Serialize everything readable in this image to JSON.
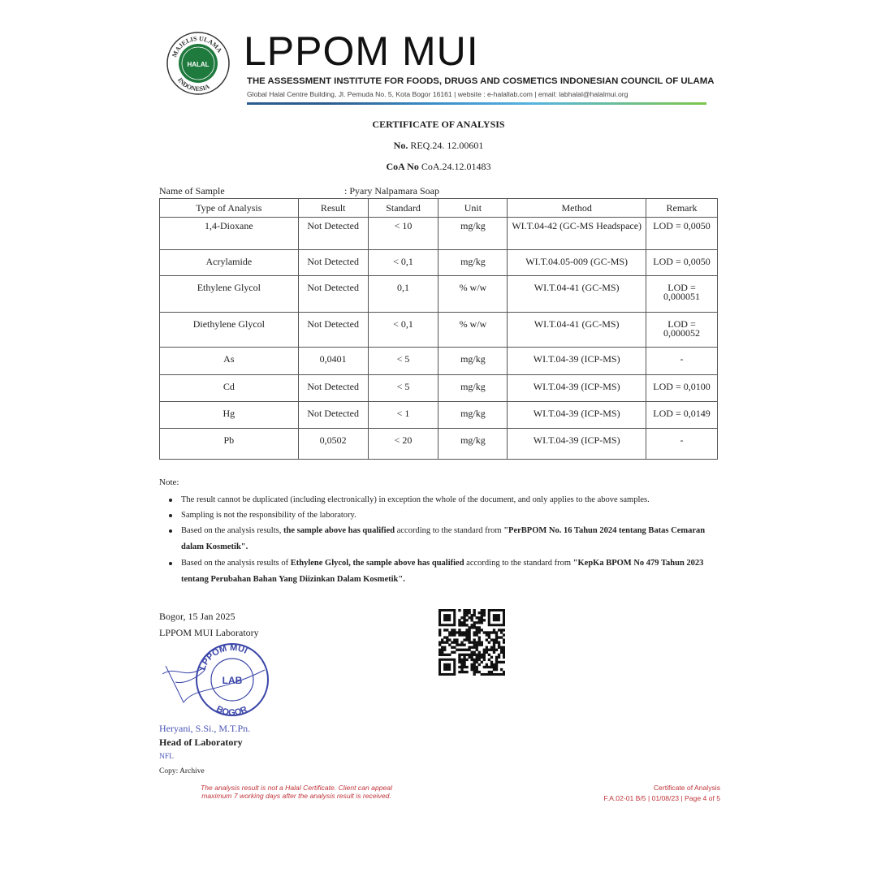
{
  "header": {
    "logo_text": "MAJELIS ULAMA INDONESIA HALAL",
    "brand": "LPPOM MUI",
    "institute": "THE ASSESSMENT INSTITUTE FOR FOODS, DRUGS AND COSMETICS INDONESIAN COUNCIL OF ULAMA",
    "address": "Global Halal Centre Building, Jl. Pemuda No. 5, Kota Bogor 16161 | website : e-halallab.com | email: labhalal@halalmui.org"
  },
  "title": "CERTIFICATE OF ANALYSIS",
  "req_label": "No.",
  "req_value": "REQ.24. 12.00601",
  "coa_label": "CoA No",
  "coa_value": "CoA.24.12.01483",
  "sample_label": "Name of Sample",
  "sample_value": ": Pyary Nalpamara Soap",
  "table": {
    "headers": [
      "Type of Analysis",
      "Result",
      "Standard",
      "Unit",
      "Method",
      "Remark"
    ],
    "rows": [
      [
        "1,4-Dioxane",
        "Not Detected",
        "< 10",
        "mg/kg",
        "WI.T.04-42 (GC-MS Headspace)",
        "LOD = 0,0050"
      ],
      [
        "Acrylamide",
        "Not Detected",
        "< 0,1",
        "mg/kg",
        "WI.T.04.05-009 (GC-MS)",
        "LOD = 0,0050"
      ],
      [
        "Ethylene Glycol",
        "Not Detected",
        "0,1",
        "% w/w",
        "WI.T.04-41 (GC-MS)",
        "LOD = 0,000051"
      ],
      [
        "Diethylene Glycol",
        "Not Detected",
        "< 0,1",
        "% w/w",
        "WI.T.04-41 (GC-MS)",
        "LOD = 0,000052"
      ],
      [
        "As",
        "0,0401",
        "< 5",
        "mg/kg",
        "WI.T.04-39 (ICP-MS)",
        "-"
      ],
      [
        "Cd",
        "Not Detected",
        "< 5",
        "mg/kg",
        "WI.T.04-39 (ICP-MS)",
        "LOD = 0,0100"
      ],
      [
        "Hg",
        "Not Detected",
        "< 1",
        "mg/kg",
        "WI.T.04-39 (ICP-MS)",
        "LOD = 0,0149"
      ],
      [
        "Pb",
        "0,0502",
        "< 20",
        "mg/kg",
        "WI.T.04-39 (ICP-MS)",
        "-"
      ]
    ]
  },
  "notes": {
    "label": "Note:",
    "n1": "The result cannot be duplicated (including electronically) in exception the whole of the document, and only applies to the above samples.",
    "n2": "Sampling is not the responsibility of the laboratory.",
    "n3a": "Based on the analysis results, ",
    "n3b": "the sample above has qualified",
    "n3c": "  according to the standard from ",
    "n3d": "\"PerBPOM No. 16 Tahun 2024 tentang Batas Cemaran dalam Kosmetik\".",
    "n4a": "Based on the analysis results of ",
    "n4b": "Ethylene Glycol, the sample above has qualified",
    "n4c": "  according to the standard from ",
    "n4d": "\"KepKa BPOM No 479 Tahun 2023 tentang Perubahan Bahan Yang Diizinkan Dalam Kosmetik\"."
  },
  "sign": {
    "place_date": "Bogor, 15 Jan 2025",
    "lab": "LPPOM MUI Laboratory",
    "stamp_text": "LPPOM MUI LAB BOGOR",
    "name": "Heryani, S.Si., M.T.Pn.",
    "position": "Head of Laboratory",
    "initials": "NFL",
    "copy": "Copy: Archive"
  },
  "footer": {
    "disclaimer1": "The analysis result is not a Halal Certificate. Client can appeal",
    "disclaimer2": "maximum 7 working days after the analysis result is received.",
    "doc_title": "Certificate of Analysis",
    "doc_ref": "F.A.02-01 B/5 | 01/08/23 | Page 4 of 5"
  },
  "colors": {
    "green": "#1f7a3e",
    "blue_sign": "#4a55b5",
    "red": "#c0353a"
  }
}
